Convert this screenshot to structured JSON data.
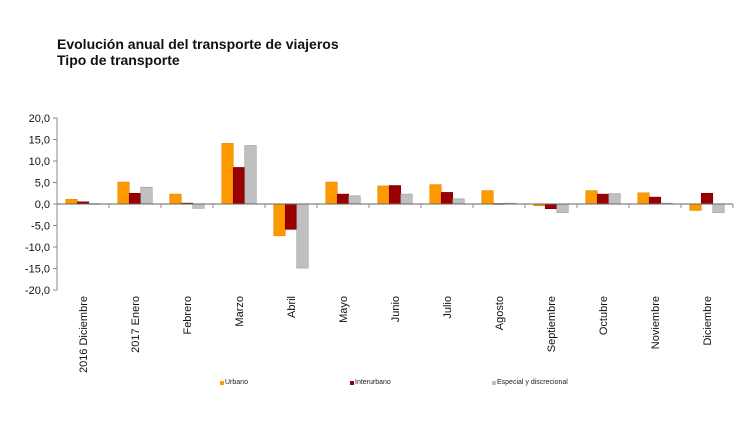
{
  "chart_data": {
    "type": "bar",
    "title": "Evolución anual del transporte de viajeros",
    "subtitle": "Tipo de transporte",
    "xlabel": "",
    "ylabel": "",
    "ylim": [
      -20,
      20
    ],
    "yticks": [
      "20,0",
      "15,0",
      "10,0",
      "5,0",
      "0,0",
      "-5,0",
      "-10,0",
      "-15,0",
      "-20,0"
    ],
    "ytick_values": [
      20,
      15,
      10,
      5,
      0,
      -5,
      -10,
      -15,
      -20
    ],
    "grid": false,
    "legend_position": "bottom",
    "categories": [
      "2016 Diciembre",
      "2017 Enero",
      "Febrero",
      "Marzo",
      "Abril",
      "Mayo",
      "Junio",
      "Julio",
      "Agosto",
      "Septiembre",
      "Octubre",
      "Noviembre",
      "Diciembre"
    ],
    "series": [
      {
        "name": "Urbano",
        "color": "#FF9900",
        "values": [
          1.1,
          5.1,
          2.3,
          14.1,
          -7.4,
          5.1,
          4.2,
          4.5,
          3.1,
          -0.4,
          3.1,
          2.6,
          -1.5
        ]
      },
      {
        "name": "Interurbano",
        "color": "#990000",
        "values": [
          0.5,
          2.5,
          0.2,
          8.5,
          -5.9,
          2.3,
          4.3,
          2.7,
          0.1,
          -1.1,
          2.3,
          1.6,
          2.5
        ]
      },
      {
        "name": "Especial y discrecional",
        "color": "#C0C0C0",
        "values": [
          0.1,
          3.9,
          -1.0,
          13.6,
          -14.9,
          1.9,
          2.3,
          1.2,
          0.2,
          -2.0,
          2.4,
          0.2,
          -2.0
        ]
      }
    ]
  }
}
